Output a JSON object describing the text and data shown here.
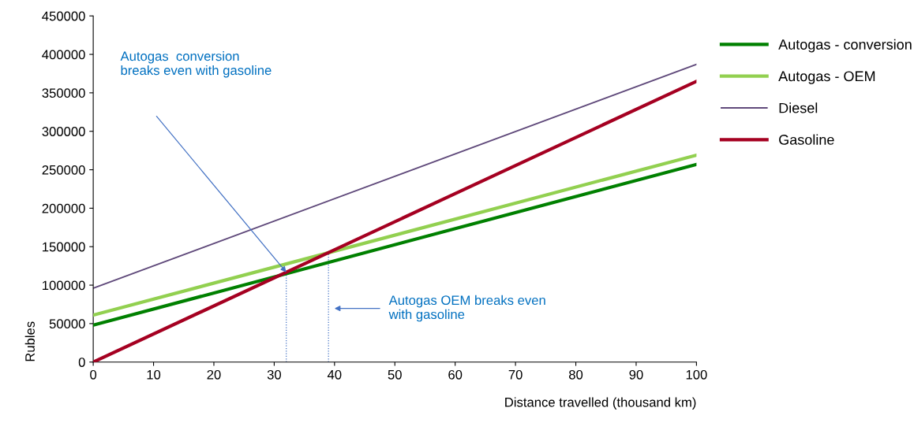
{
  "chart_data": {
    "type": "line",
    "xlabel": "Distance travelled (thousand km)",
    "ylabel": "Rubles",
    "x": [
      0,
      100
    ],
    "series": [
      {
        "name": "Autogas - conversion",
        "color": "#008000",
        "values": [
          48000,
          257000
        ]
      },
      {
        "name": "Autogas - OEM",
        "color": "#92d050",
        "values": [
          61000,
          269000
        ]
      },
      {
        "name": "Diesel",
        "color": "#604a7b",
        "values": [
          96000,
          387000
        ]
      },
      {
        "name": "Gasoline",
        "color": "#a50021",
        "values": [
          0,
          365000
        ]
      }
    ],
    "xlim": [
      0,
      100
    ],
    "xticks": [
      0,
      10,
      20,
      30,
      40,
      50,
      60,
      70,
      80,
      90,
      100
    ],
    "ylim": [
      0,
      450000
    ],
    "yticks": [
      0,
      50000,
      100000,
      150000,
      200000,
      250000,
      300000,
      350000,
      400000,
      450000
    ],
    "ref_lines": [
      {
        "axis": "x",
        "value": 32,
        "color": "#4472c4",
        "line_style": "dotted"
      },
      {
        "axis": "x",
        "value": 39,
        "color": "#4472c4",
        "line_style": "dotted"
      }
    ],
    "annotations": [
      "Autogas  conversion\nbreaks even with gasoline",
      "Autogas OEM breaks even\nwith gasoline"
    ],
    "grid": false,
    "legend": "right",
    "marker": "none",
    "line_style": "solid"
  }
}
